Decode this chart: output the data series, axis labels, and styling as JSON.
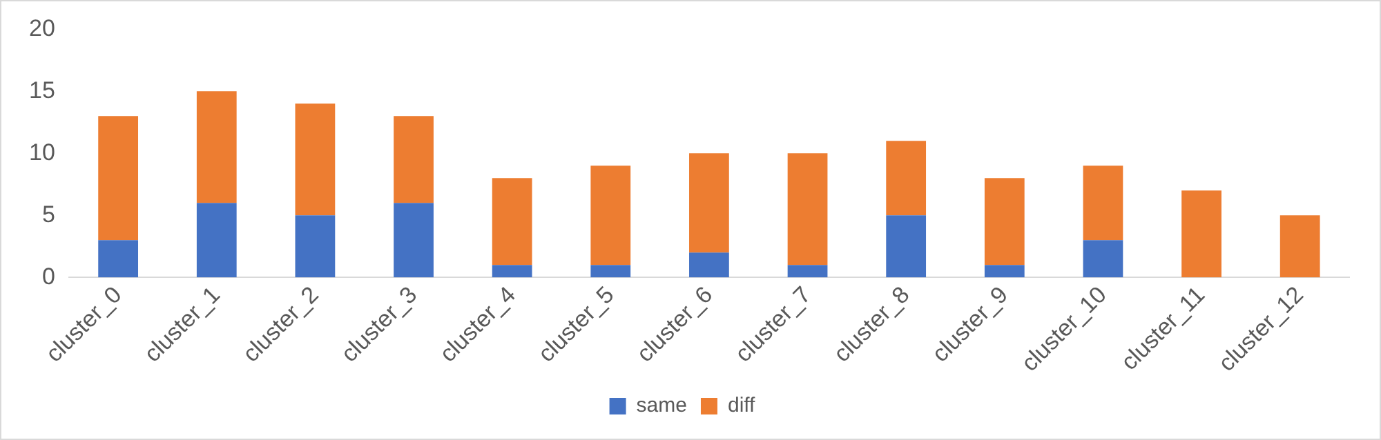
{
  "chart_data": {
    "type": "bar",
    "stacked": true,
    "categories": [
      "cluster_0",
      "cluster_1",
      "cluster_2",
      "cluster_3",
      "cluster_4",
      "cluster_5",
      "cluster_6",
      "cluster_7",
      "cluster_8",
      "cluster_9",
      "cluster_10",
      "cluster_11",
      "cluster_12"
    ],
    "series": [
      {
        "name": "same",
        "color": "#4472c4",
        "values": [
          3,
          6,
          5,
          6,
          1,
          1,
          2,
          1,
          5,
          1,
          3,
          0,
          0
        ]
      },
      {
        "name": "diff",
        "color": "#ed7d31",
        "values": [
          10,
          9,
          9,
          7,
          7,
          8,
          8,
          9,
          6,
          7,
          6,
          7,
          5
        ]
      }
    ],
    "ylim": [
      0,
      20
    ],
    "yticks": [
      0,
      5,
      10,
      15,
      20
    ],
    "grid": false,
    "legend": "bottom"
  }
}
